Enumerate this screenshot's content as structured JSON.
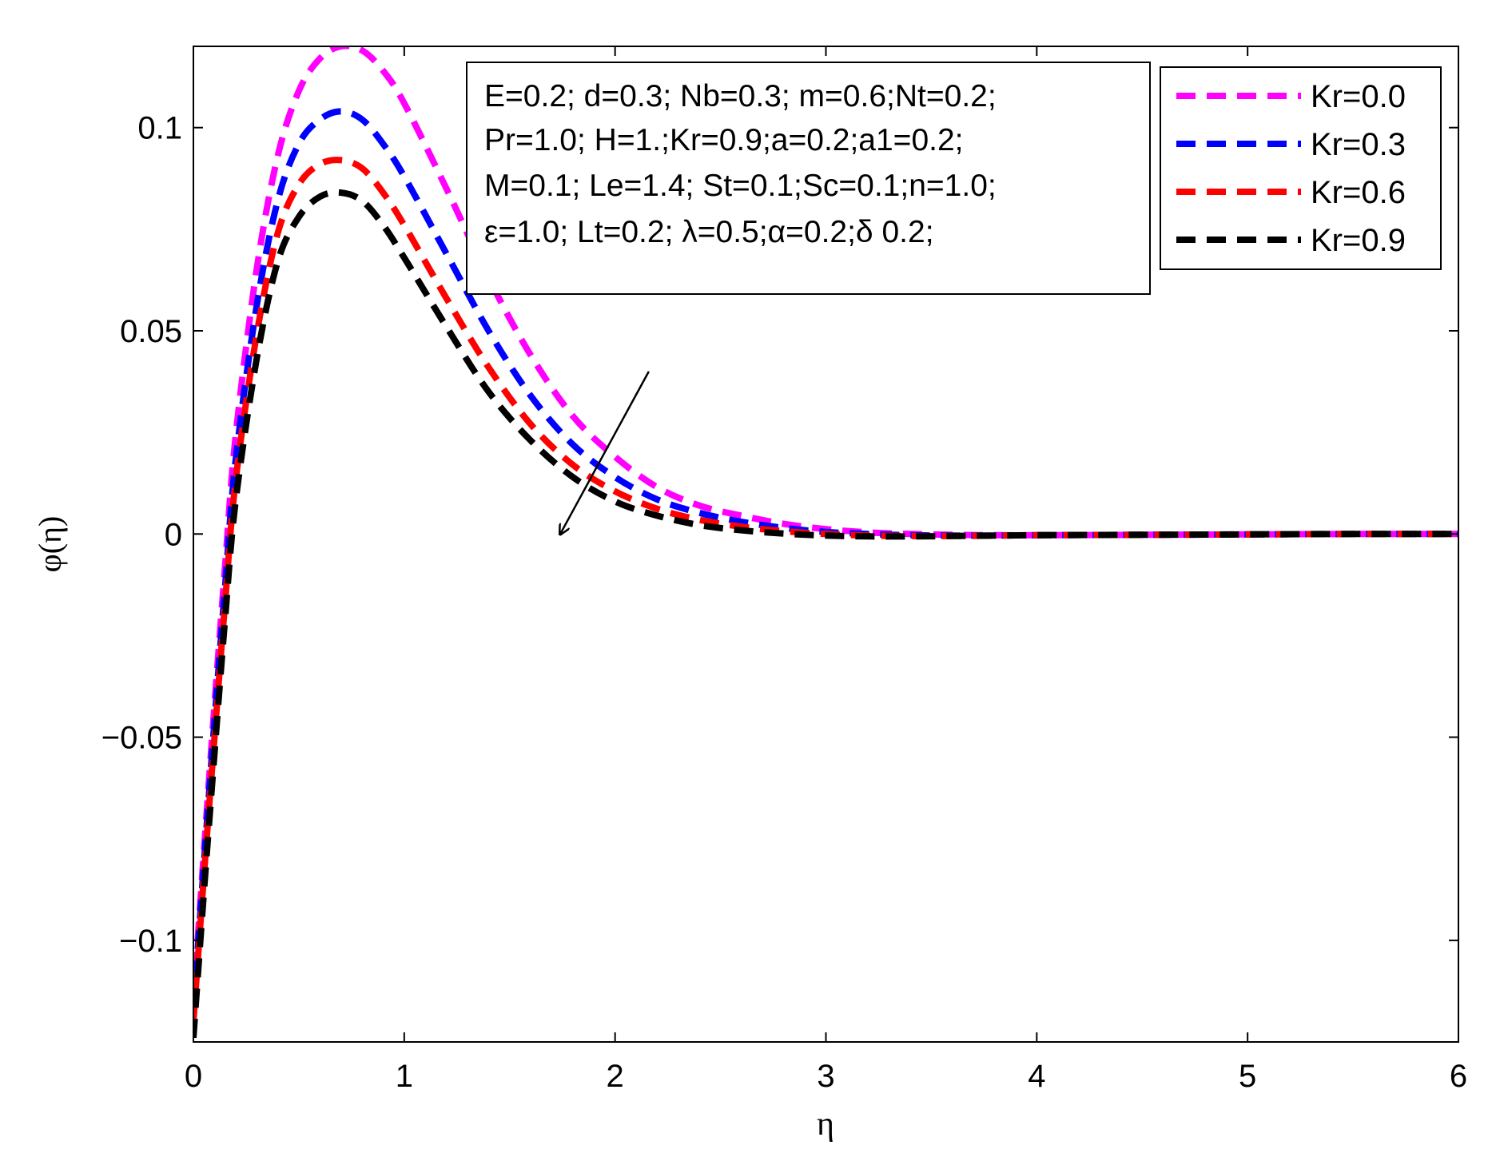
{
  "chart_data": {
    "type": "line",
    "xlabel": "η",
    "ylabel": "φ(η)",
    "xlim": [
      0,
      6
    ],
    "ylim": [
      -0.125,
      0.12
    ],
    "xticks": [
      0,
      1,
      2,
      3,
      4,
      5,
      6
    ],
    "xtick_labels": [
      "0",
      "1",
      "2",
      "3",
      "4",
      "5",
      "6"
    ],
    "yticks": [
      -0.1,
      -0.05,
      0,
      0.05,
      0.1
    ],
    "ytick_labels": [
      "−0.1",
      "−0.05",
      "0",
      "0.05",
      "0.1"
    ],
    "grid": false,
    "legend_position": "top-right",
    "line_style": "dashed",
    "series": [
      {
        "name": "Kr=0.0",
        "color": "#ff00ff",
        "x": [
          0,
          0.05,
          0.1,
          0.15,
          0.2,
          0.3,
          0.4,
          0.5,
          0.6,
          0.7,
          0.8,
          0.9,
          1.0,
          1.2,
          1.4,
          1.6,
          1.8,
          2.0,
          2.2,
          2.4,
          2.6,
          2.8,
          3.0,
          3.2,
          3.4,
          3.6,
          3.8,
          4.0,
          4.5,
          5.0,
          5.5,
          6.0
        ],
        "y": [
          -0.115,
          -0.078,
          -0.042,
          -0.008,
          0.024,
          0.065,
          0.093,
          0.109,
          0.117,
          0.12,
          0.119,
          0.114,
          0.106,
          0.085,
          0.063,
          0.044,
          0.029,
          0.019,
          0.0115,
          0.007,
          0.0045,
          0.0025,
          0.0012,
          0.0004,
          0.0,
          -0.0002,
          -0.0003,
          -0.0003,
          -0.0002,
          -0.0001,
          0.0,
          0.0
        ]
      },
      {
        "name": "Kr=0.3",
        "color": "#0000ff",
        "x": [
          0,
          0.05,
          0.1,
          0.15,
          0.2,
          0.3,
          0.4,
          0.5,
          0.6,
          0.7,
          0.8,
          0.9,
          1.0,
          1.2,
          1.4,
          1.6,
          1.8,
          2.0,
          2.2,
          2.4,
          2.6,
          2.8,
          3.0,
          3.2,
          3.4,
          3.6,
          3.8,
          4.0,
          4.5,
          5.0,
          5.5,
          6.0
        ],
        "y": [
          -0.117,
          -0.081,
          -0.046,
          -0.013,
          0.018,
          0.056,
          0.082,
          0.096,
          0.102,
          0.104,
          0.102,
          0.096,
          0.088,
          0.069,
          0.05,
          0.034,
          0.022,
          0.014,
          0.0085,
          0.0052,
          0.003,
          0.0015,
          0.0005,
          0.0,
          -0.0003,
          -0.0004,
          -0.0004,
          -0.0003,
          -0.0002,
          -0.0001,
          0.0,
          0.0
        ]
      },
      {
        "name": "Kr=0.6",
        "color": "#ff0000",
        "x": [
          0,
          0.05,
          0.1,
          0.15,
          0.2,
          0.3,
          0.4,
          0.5,
          0.6,
          0.7,
          0.8,
          0.9,
          1.0,
          1.2,
          1.4,
          1.6,
          1.8,
          2.0,
          2.2,
          2.4,
          2.6,
          2.8,
          3.0,
          3.2,
          3.4,
          3.6,
          3.8,
          4.0,
          4.5,
          5.0,
          5.5,
          6.0
        ],
        "y": [
          -0.12,
          -0.084,
          -0.05,
          -0.017,
          0.013,
          0.049,
          0.074,
          0.086,
          0.091,
          0.092,
          0.09,
          0.084,
          0.076,
          0.058,
          0.041,
          0.027,
          0.017,
          0.0105,
          0.0062,
          0.0035,
          0.0018,
          0.0007,
          0.0,
          -0.0004,
          -0.0005,
          -0.0005,
          -0.0004,
          -0.0003,
          -0.0002,
          -0.0001,
          0.0,
          0.0
        ]
      },
      {
        "name": "Kr=0.9",
        "color": "#000000",
        "x": [
          0,
          0.05,
          0.1,
          0.15,
          0.2,
          0.3,
          0.4,
          0.5,
          0.6,
          0.7,
          0.8,
          0.9,
          1.0,
          1.2,
          1.4,
          1.6,
          1.8,
          2.0,
          2.2,
          2.4,
          2.6,
          2.8,
          3.0,
          3.2,
          3.4,
          3.6,
          3.8,
          4.0,
          4.5,
          5.0,
          5.5,
          6.0
        ],
        "y": [
          -0.124,
          -0.088,
          -0.054,
          -0.021,
          0.008,
          0.043,
          0.067,
          0.078,
          0.083,
          0.084,
          0.082,
          0.076,
          0.068,
          0.051,
          0.035,
          0.023,
          0.014,
          0.008,
          0.0045,
          0.0022,
          0.0009,
          0.0001,
          -0.0004,
          -0.0006,
          -0.0006,
          -0.0005,
          -0.0004,
          -0.0003,
          -0.0002,
          -0.0001,
          0.0,
          0.0
        ]
      }
    ],
    "annotations": {
      "params": [
        "E=0.2; d=0.3; Nb=0.3; m=0.6;Nt=0.2;",
        "Pr=1.0; H=1.;Kr=0.9;a=0.2;a1=0.2;",
        "M=0.1; Le=1.4; St=0.1;Sc=0.1;n=1.0;",
        "ε=1.0; Lt=0.2; λ=0.5;α=0.2;δ 0.2;"
      ],
      "arrow": {
        "from": [
          2.16,
          0.04
        ],
        "to": [
          1.74,
          0.0
        ],
        "meaning": "increasing Kr"
      }
    }
  }
}
